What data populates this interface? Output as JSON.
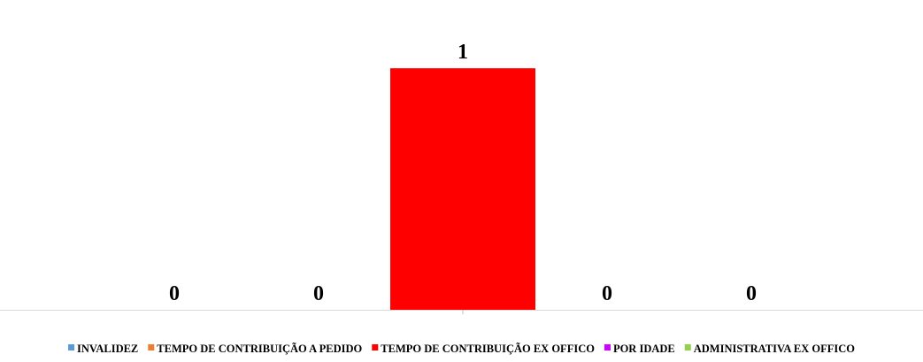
{
  "chart_data": {
    "type": "bar",
    "title": "",
    "xlabel": "",
    "ylabel": "",
    "ylim": [
      0,
      1.18
    ],
    "grid": false,
    "legend_position": "bottom",
    "series": [
      {
        "name": "INVALIDEZ",
        "value": 0,
        "label": "0",
        "color": "#5B9BD5"
      },
      {
        "name": "TEMPO DE CONTRIBUIÇÃO A PEDIDO",
        "value": 0,
        "label": "0",
        "color": "#ED7D31"
      },
      {
        "name": "TEMPO DE CONTRIBUIÇÃO EX OFFICO",
        "value": 1,
        "label": "1",
        "color": "#FF0000"
      },
      {
        "name": "POR IDADE",
        "value": 0,
        "label": "0",
        "color": "#CC00FF"
      },
      {
        "name": "ADMINISTRATIVA EX OFFICO",
        "value": 0,
        "label": "0",
        "color": "#92D050"
      }
    ]
  }
}
